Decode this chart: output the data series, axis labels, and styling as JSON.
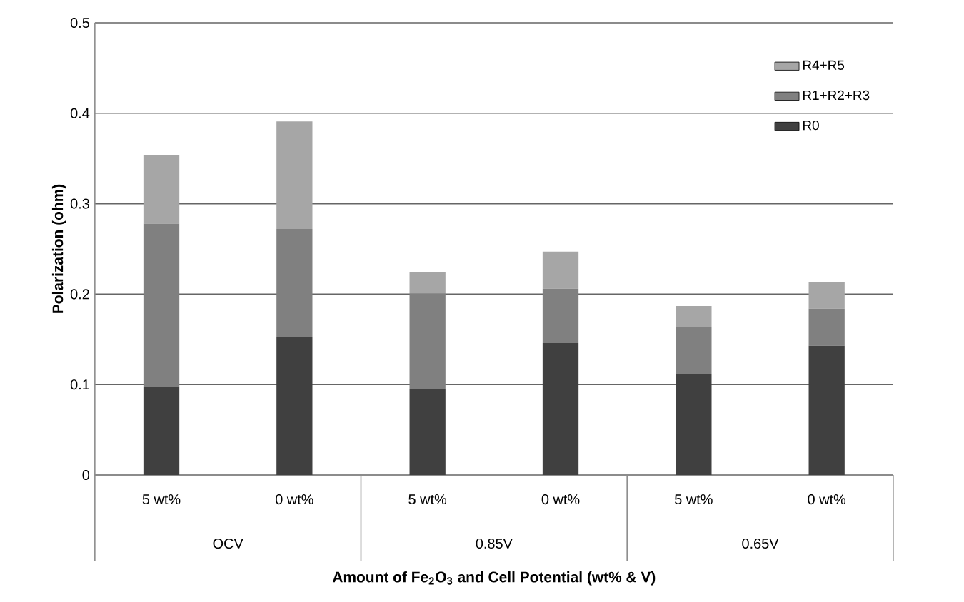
{
  "chart_data": {
    "type": "bar",
    "stacked": true,
    "xlabel": "Amount of Fe$_{2}$O$_{3}$ and Cell Potential (wt% & V)",
    "ylabel": "Polarization (ohm)",
    "categories": [
      "5 wt%",
      "0 wt%",
      "5 wt%",
      "0 wt%",
      "5 wt%",
      "0 wt%"
    ],
    "annotations": [
      "OCV",
      "0.85V",
      "0.65V"
    ],
    "series": [
      {
        "name": "R0",
        "color": "#404040",
        "values": [
          0.097,
          0.153,
          0.095,
          0.146,
          0.112,
          0.143
        ]
      },
      {
        "name": "R1+R2+R3",
        "color": "#808080",
        "values": [
          0.181,
          0.119,
          0.106,
          0.06,
          0.052,
          0.041
        ]
      },
      {
        "name": "R4+R5",
        "color": "#a6a6a6",
        "values": [
          0.076,
          0.119,
          0.023,
          0.041,
          0.023,
          0.029
        ]
      }
    ],
    "ylim": [
      0,
      0.5
    ],
    "yticks": [
      0,
      0.1,
      0.2,
      0.3,
      0.4,
      0.5
    ],
    "grid": "y",
    "legend": "top right"
  }
}
